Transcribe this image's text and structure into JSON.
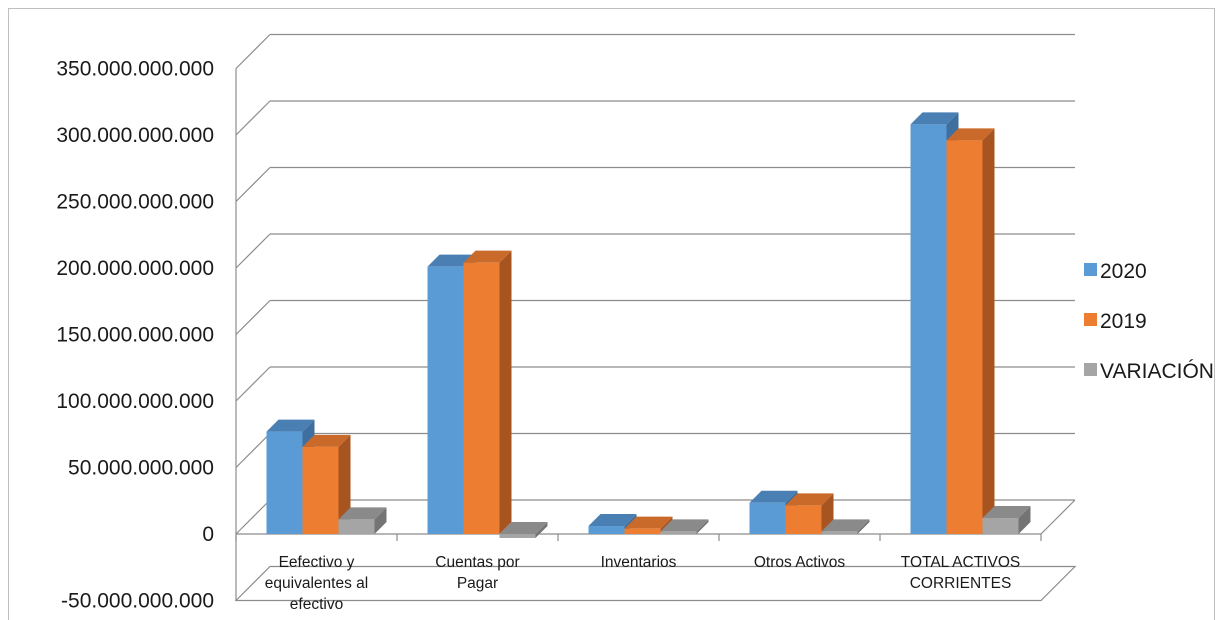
{
  "chart_data": {
    "type": "bar",
    "title": "",
    "xlabel": "",
    "ylabel": "",
    "categories": [
      [
        "Eefectivo y",
        "equivalentes al",
        "efectivo"
      ],
      [
        "Cuentas por",
        "Pagar"
      ],
      [
        "Inventarios"
      ],
      [
        "Otros Activos"
      ],
      [
        "TOTAL ACTIVOS",
        "CORRIENTES"
      ]
    ],
    "series": [
      {
        "name": "2020",
        "values": [
          77000000000,
          201000000000,
          6000000000,
          23500000000,
          308000000000
        ]
      },
      {
        "name": "2019",
        "values": [
          65500000000,
          204000000000,
          4000000000,
          21500000000,
          296000000000
        ]
      },
      {
        "name": "VARIACIÓN",
        "values": [
          11000000000,
          -3000000000,
          2000000000,
          2000000000,
          12000000000
        ]
      }
    ],
    "ylim": [
      -50000000000,
      350000000000
    ],
    "yticks": [
      {
        "value": -50000000000,
        "label": "-50.000.000.000"
      },
      {
        "value": 0,
        "label": "0"
      },
      {
        "value": 50000000000,
        "label": "50.000.000.000"
      },
      {
        "value": 100000000000,
        "label": "100.000.000.000"
      },
      {
        "value": 150000000000,
        "label": "150.000.000.000"
      },
      {
        "value": 200000000000,
        "label": "200.000.000.000"
      },
      {
        "value": 250000000000,
        "label": "250.000.000.000"
      },
      {
        "value": 300000000000,
        "label": "300.000.000.000"
      },
      {
        "value": 350000000000,
        "label": "350.000.000.000"
      }
    ],
    "grid": true,
    "legend_position": "right",
    "style": "3d-clustered-column",
    "colors": {
      "2020": {
        "front": "#5b9bd5",
        "top": "#4a7fb3",
        "side": "#3f6f9e"
      },
      "2019": {
        "front": "#ed7d31",
        "top": "#c96a2a",
        "side": "#a85420"
      },
      "VARIACIÓN": {
        "front": "#a5a5a5",
        "top": "#8a8a8a",
        "side": "#747474"
      }
    }
  }
}
